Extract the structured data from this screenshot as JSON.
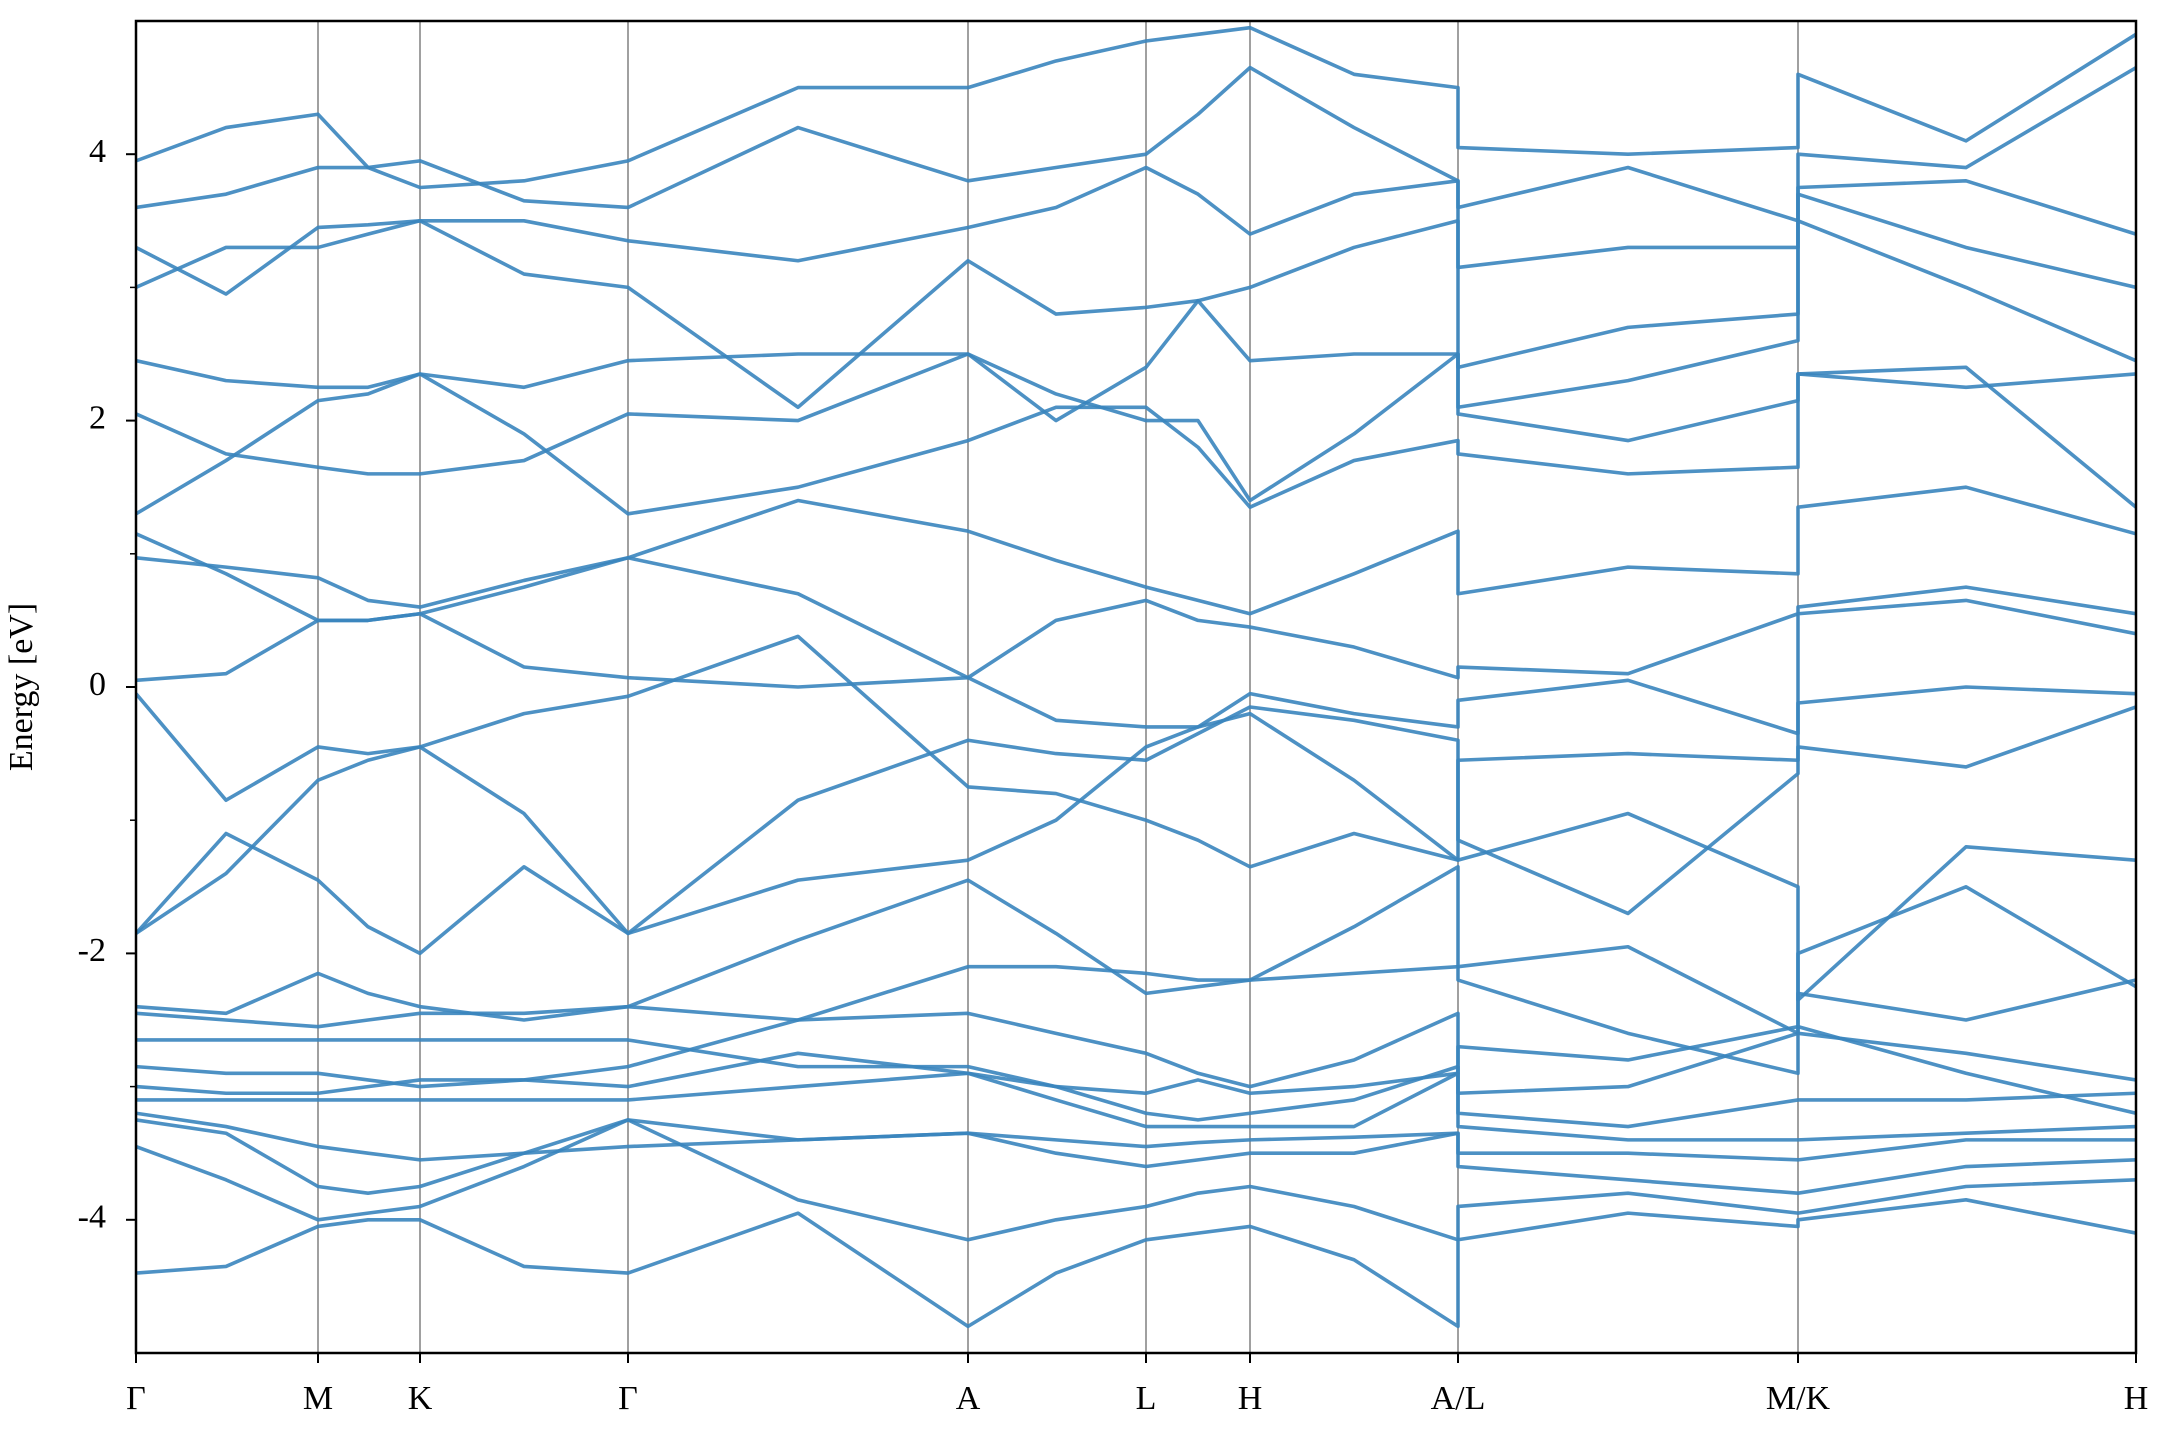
{
  "chart_data": {
    "type": "line",
    "ylabel": "Energy [eV]",
    "color": "#3a85be",
    "ylim": [
      -5,
      5
    ],
    "yticks": [
      -4,
      -2,
      0,
      2,
      4
    ],
    "yminorticks": [
      -3,
      -1,
      1,
      3
    ],
    "xlim": [
      0,
      1
    ],
    "xticks": [
      {
        "value": 0,
        "label": "Γ"
      },
      {
        "value": 0.091,
        "label": "M"
      },
      {
        "value": 0.142,
        "label": "K"
      },
      {
        "value": 0.246,
        "label": "Γ"
      },
      {
        "value": 0.416,
        "label": "A"
      },
      {
        "value": 0.505,
        "label": "L"
      },
      {
        "value": 0.557,
        "label": "H"
      },
      {
        "value": 0.661,
        "label": "A/L"
      },
      {
        "value": 0.831,
        "label": "M/K"
      },
      {
        "value": 1,
        "label": "H"
      }
    ],
    "grid": true,
    "x": [
      0,
      0.045,
      0.091,
      0.116,
      0.142,
      0.194,
      0.246,
      0.331,
      0.416,
      0.46,
      0.505,
      0.531,
      0.557,
      0.609,
      0.661,
      0.661,
      0.746,
      0.831,
      0.831,
      0.915,
      1
    ],
    "series": [
      {
        "values": [
          -4.4,
          -4.35,
          -4.05,
          -4.0,
          -4.0,
          -4.35,
          -4.4,
          -3.95,
          -4.8,
          -4.4,
          -4.15,
          -4.1,
          -4.05,
          -4.3,
          -4.8,
          -4.15,
          -3.95,
          -4.05,
          -4.0,
          -3.85,
          -4.1
        ]
      },
      {
        "values": [
          -3.45,
          -3.7,
          -4.0,
          -3.95,
          -3.9,
          -3.6,
          -3.25,
          -3.85,
          -4.15,
          -4.0,
          -3.9,
          -3.8,
          -3.75,
          -3.9,
          -4.15,
          -3.9,
          -3.8,
          -3.95,
          -3.95,
          -3.75,
          -3.7
        ]
      },
      {
        "values": [
          -3.25,
          -3.35,
          -3.75,
          -3.8,
          -3.75,
          -3.5,
          -3.25,
          -3.4,
          -3.35,
          -3.5,
          -3.6,
          -3.55,
          -3.5,
          -3.5,
          -3.35,
          -3.6,
          -3.7,
          -3.8,
          -3.8,
          -3.6,
          -3.55
        ]
      },
      {
        "values": [
          -3.2,
          -3.3,
          -3.45,
          -3.5,
          -3.55,
          -3.5,
          -3.45,
          -3.4,
          -3.35,
          -3.4,
          -3.45,
          -3.42,
          -3.4,
          -3.38,
          -3.35,
          -3.5,
          -3.5,
          -3.55,
          -3.55,
          -3.4,
          -3.4
        ]
      },
      {
        "values": [
          -3.1,
          -3.1,
          -3.1,
          -3.1,
          -3.1,
          -3.1,
          -3.1,
          -3.0,
          -2.9,
          -3.1,
          -3.3,
          -3.3,
          -3.3,
          -3.3,
          -2.9,
          -3.3,
          -3.4,
          -3.4,
          -3.4,
          -3.35,
          -3.3
        ]
      },
      {
        "values": [
          -3.0,
          -3.05,
          -3.05,
          -3.0,
          -2.95,
          -2.95,
          -3.0,
          -2.75,
          -2.9,
          -3.0,
          -3.2,
          -3.25,
          -3.2,
          -3.1,
          -2.85,
          -3.2,
          -3.3,
          -3.1,
          -3.1,
          -3.1,
          -3.05
        ]
      },
      {
        "values": [
          -2.85,
          -2.9,
          -2.9,
          -2.95,
          -3.0,
          -2.95,
          -2.85,
          -2.5,
          -2.45,
          -2.6,
          -2.75,
          -2.9,
          -3.0,
          -2.8,
          -2.45,
          -3.05,
          -3.0,
          -2.6,
          -2.6,
          -2.75,
          -2.95
        ]
      },
      {
        "values": [
          -2.65,
          -2.65,
          -2.65,
          -2.65,
          -2.65,
          -2.65,
          -2.65,
          -2.85,
          -2.85,
          -3.0,
          -3.05,
          -2.95,
          -3.05,
          -3.0,
          -2.9,
          -2.7,
          -2.8,
          -2.55,
          -2.55,
          -2.9,
          -3.2
        ]
      },
      {
        "values": [
          -2.45,
          -2.5,
          -2.55,
          -2.5,
          -2.45,
          -2.45,
          -2.4,
          -2.5,
          -2.1,
          -2.1,
          -2.15,
          -2.2,
          -2.2,
          -2.15,
          -2.1,
          -2.2,
          -2.6,
          -2.9,
          -2.3,
          -2.5,
          -2.2
        ]
      },
      {
        "values": [
          -2.4,
          -2.45,
          -2.15,
          -2.3,
          -2.4,
          -2.5,
          -2.4,
          -1.9,
          -1.45,
          -1.85,
          -2.3,
          -2.25,
          -2.2,
          -1.8,
          -1.35,
          -2.1,
          -1.95,
          -2.6,
          -2.0,
          -1.5,
          -2.25
        ]
      },
      {
        "values": [
          -1.85,
          -1.1,
          -1.45,
          -1.8,
          -2.0,
          -1.35,
          -1.85,
          -1.45,
          -1.3,
          -1.0,
          -0.45,
          -0.3,
          -0.2,
          -0.7,
          -1.3,
          -1.3,
          -0.95,
          -1.5,
          -2.35,
          -1.2,
          -1.3
        ]
      },
      {
        "values": [
          -1.85,
          -1.4,
          -0.7,
          -0.55,
          -0.45,
          -0.95,
          -1.85,
          -0.85,
          -0.4,
          -0.5,
          -0.55,
          -0.35,
          -0.15,
          -0.25,
          -0.4,
          -1.15,
          -1.7,
          -0.65,
          -0.45,
          -0.6,
          -0.15
        ]
      },
      {
        "values": [
          -0.05,
          -0.85,
          -0.45,
          -0.5,
          -0.45,
          -0.2,
          -0.07,
          0.38,
          -0.75,
          -0.8,
          -1.0,
          -1.15,
          -1.35,
          -1.1,
          -1.3,
          -0.55,
          -0.5,
          -0.55,
          -0.12,
          0.0,
          -0.05
        ]
      },
      {
        "values": [
          0.05,
          0.1,
          0.5,
          0.5,
          0.55,
          0.15,
          0.07,
          0.0,
          0.07,
          -0.25,
          -0.3,
          -0.3,
          -0.05,
          -0.2,
          -0.3,
          -0.1,
          0.05,
          -0.35,
          0.55,
          0.65,
          0.4
        ]
      },
      {
        "values": [
          0.97,
          0.9,
          0.82,
          0.65,
          0.6,
          0.8,
          0.97,
          0.7,
          0.07,
          0.5,
          0.65,
          0.5,
          0.45,
          0.3,
          0.07,
          0.15,
          0.1,
          0.55,
          0.6,
          0.75,
          0.55
        ]
      },
      {
        "values": [
          1.15,
          0.85,
          0.5,
          0.5,
          0.55,
          0.75,
          0.97,
          1.4,
          1.17,
          0.95,
          0.75,
          0.65,
          0.55,
          0.85,
          1.17,
          0.7,
          0.9,
          0.85,
          1.35,
          1.5,
          1.15
        ]
      },
      {
        "values": [
          1.3,
          1.7,
          2.15,
          2.2,
          2.35,
          1.9,
          1.3,
          1.5,
          1.85,
          2.1,
          2.1,
          1.8,
          1.35,
          1.7,
          1.85,
          1.75,
          1.6,
          1.65,
          2.35,
          2.4,
          1.35
        ]
      },
      {
        "values": [
          2.05,
          1.75,
          1.65,
          1.6,
          1.6,
          1.7,
          2.05,
          2.0,
          2.5,
          2.2,
          2.0,
          2.0,
          1.4,
          1.9,
          2.5,
          2.05,
          1.85,
          2.15,
          2.35,
          2.25,
          2.35
        ]
      },
      {
        "values": [
          2.45,
          2.3,
          2.25,
          2.25,
          2.35,
          2.25,
          2.45,
          2.5,
          2.5,
          2.0,
          2.4,
          2.9,
          2.45,
          2.5,
          2.5,
          2.1,
          2.3,
          2.6,
          3.5,
          3.0,
          2.45
        ]
      },
      {
        "values": [
          3.0,
          3.3,
          3.3,
          3.4,
          3.5,
          3.1,
          3.0,
          2.1,
          3.2,
          2.8,
          2.85,
          2.9,
          3.0,
          3.3,
          3.5,
          2.4,
          2.7,
          2.8,
          3.7,
          3.3,
          3.0
        ]
      },
      {
        "values": [
          3.3,
          2.95,
          3.45,
          3.47,
          3.5,
          3.5,
          3.35,
          3.2,
          3.45,
          3.6,
          3.9,
          3.7,
          3.4,
          3.7,
          3.8,
          3.15,
          3.3,
          3.3,
          3.75,
          3.8,
          3.4
        ]
      },
      {
        "values": [
          3.6,
          3.7,
          3.9,
          3.9,
          3.95,
          3.65,
          3.6,
          4.2,
          3.8,
          3.9,
          4.0,
          4.3,
          4.65,
          4.2,
          3.8,
          3.6,
          3.9,
          3.5,
          4.0,
          3.9,
          4.65
        ]
      },
      {
        "values": [
          3.95,
          4.2,
          4.3,
          3.9,
          3.75,
          3.8,
          3.95,
          4.5,
          4.5,
          4.7,
          4.85,
          4.9,
          4.95,
          4.6,
          4.5,
          4.05,
          4.0,
          4.05,
          4.6,
          4.1,
          4.9
        ]
      }
    ]
  }
}
